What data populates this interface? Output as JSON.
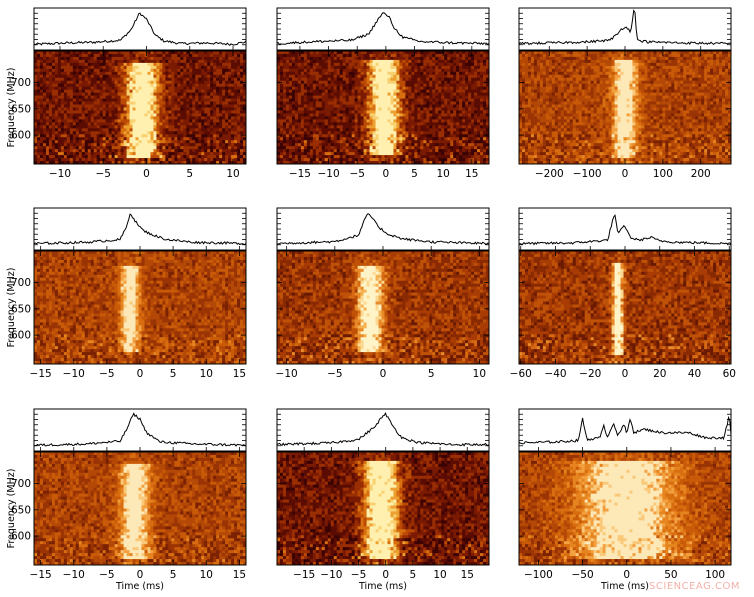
{
  "watermark": "SCIENCEAG.COM",
  "labels": {
    "ylabel": "Frequency (MHz)",
    "xlabel": "Time (ms)"
  },
  "chart_data": [
    {
      "type": "heatmap",
      "row": 0,
      "col": 0,
      "xlim": [
        -13,
        11.5
      ],
      "xticks": [
        -10,
        -5,
        0,
        5,
        10
      ],
      "ylim": [
        545,
        760
      ],
      "yticks": [
        600,
        650,
        700
      ],
      "colormap": "dark",
      "profile": [
        {
          "x": -13,
          "y": 0.08
        },
        {
          "x": -9,
          "y": 0.12
        },
        {
          "x": -6,
          "y": 0.14
        },
        {
          "x": -3,
          "y": 0.2
        },
        {
          "x": -1.8,
          "y": 0.5
        },
        {
          "x": -0.8,
          "y": 1.0
        },
        {
          "x": 0,
          "y": 0.82
        },
        {
          "x": 1,
          "y": 0.35
        },
        {
          "x": 2,
          "y": 0.18
        },
        {
          "x": 4,
          "y": 0.1
        },
        {
          "x": 7,
          "y": 0.12
        },
        {
          "x": 10,
          "y": 0.08
        },
        {
          "x": 11.5,
          "y": 0.15
        }
      ],
      "burst_center": -0.5,
      "burst_width": 1.8,
      "burst_fmin": 555,
      "burst_fmax": 740
    },
    {
      "type": "heatmap",
      "row": 0,
      "col": 1,
      "xlim": [
        -19,
        18
      ],
      "xticks": [
        -15,
        -10,
        -5,
        0,
        5,
        10,
        15
      ],
      "ylim": [
        545,
        760
      ],
      "yticks": [
        600,
        650,
        700
      ],
      "colormap": "dark",
      "profile": [
        {
          "x": -19,
          "y": 0.1
        },
        {
          "x": -12,
          "y": 0.16
        },
        {
          "x": -6,
          "y": 0.2
        },
        {
          "x": -3,
          "y": 0.38
        },
        {
          "x": -1.5,
          "y": 0.78
        },
        {
          "x": -0.5,
          "y": 1.0
        },
        {
          "x": 0.5,
          "y": 0.9
        },
        {
          "x": 1.5,
          "y": 0.55
        },
        {
          "x": 3,
          "y": 0.28
        },
        {
          "x": 6,
          "y": 0.16
        },
        {
          "x": 12,
          "y": 0.12
        },
        {
          "x": 18,
          "y": 0.1
        }
      ],
      "burst_center": -0.3,
      "burst_width": 2.5,
      "burst_fmin": 560,
      "burst_fmax": 745
    },
    {
      "type": "heatmap",
      "row": 0,
      "col": 2,
      "xlim": [
        -280,
        280
      ],
      "xticks": [
        -200,
        -100,
        0,
        100,
        200
      ],
      "ylim": [
        545,
        760
      ],
      "yticks": [
        600,
        650,
        700
      ],
      "colormap": "light",
      "profile": [
        {
          "x": -280,
          "y": 0.1
        },
        {
          "x": -200,
          "y": 0.12
        },
        {
          "x": -100,
          "y": 0.15
        },
        {
          "x": -40,
          "y": 0.2
        },
        {
          "x": -20,
          "y": 0.38
        },
        {
          "x": -10,
          "y": 0.52
        },
        {
          "x": 0,
          "y": 0.6
        },
        {
          "x": 8,
          "y": 0.55
        },
        {
          "x": 15,
          "y": 0.4
        },
        {
          "x": 25,
          "y": 1.25
        },
        {
          "x": 32,
          "y": 0.2
        },
        {
          "x": 60,
          "y": 0.15
        },
        {
          "x": 150,
          "y": 0.12
        },
        {
          "x": 280,
          "y": 0.1
        }
      ],
      "burst_center": 0,
      "burst_width": 30,
      "burst_fmin": 555,
      "burst_fmax": 745
    },
    {
      "type": "heatmap",
      "row": 1,
      "col": 0,
      "xlim": [
        -16,
        16
      ],
      "xticks": [
        -15,
        -10,
        -5,
        0,
        5,
        10,
        15
      ],
      "ylim": [
        545,
        760
      ],
      "yticks": [
        600,
        650,
        700
      ],
      "colormap": "light",
      "profile": [
        {
          "x": -16,
          "y": 0.1
        },
        {
          "x": -8,
          "y": 0.14
        },
        {
          "x": -3,
          "y": 0.22
        },
        {
          "x": -2,
          "y": 0.6
        },
        {
          "x": -1.5,
          "y": 1.0
        },
        {
          "x": -0.5,
          "y": 0.7
        },
        {
          "x": 0.5,
          "y": 0.48
        },
        {
          "x": 2,
          "y": 0.35
        },
        {
          "x": 4,
          "y": 0.22
        },
        {
          "x": 8,
          "y": 0.14
        },
        {
          "x": 16,
          "y": 0.1
        }
      ],
      "burst_center": -1.5,
      "burst_width": 1.3,
      "burst_fmin": 570,
      "burst_fmax": 730
    },
    {
      "type": "heatmap",
      "row": 1,
      "col": 1,
      "xlim": [
        -11,
        11
      ],
      "xticks": [
        -10,
        -5,
        0,
        5,
        10
      ],
      "ylim": [
        545,
        760
      ],
      "yticks": [
        600,
        650,
        700
      ],
      "colormap": "medium",
      "profile": [
        {
          "x": -11,
          "y": 0.1
        },
        {
          "x": -5,
          "y": 0.16
        },
        {
          "x": -2.5,
          "y": 0.35
        },
        {
          "x": -2,
          "y": 0.75
        },
        {
          "x": -1.5,
          "y": 1.0
        },
        {
          "x": -0.5,
          "y": 0.6
        },
        {
          "x": 0.5,
          "y": 0.38
        },
        {
          "x": 2,
          "y": 0.24
        },
        {
          "x": 5,
          "y": 0.15
        },
        {
          "x": 11,
          "y": 0.1
        }
      ],
      "burst_center": -1.3,
      "burst_width": 1.2,
      "burst_fmin": 570,
      "burst_fmax": 730
    },
    {
      "type": "heatmap",
      "row": 1,
      "col": 2,
      "xlim": [
        -61,
        61
      ],
      "xticks": [
        -60,
        -40,
        -20,
        0,
        20,
        40,
        60
      ],
      "ylim": [
        545,
        760
      ],
      "yticks": [
        600,
        650,
        700
      ],
      "colormap": "medium",
      "profile": [
        {
          "x": -61,
          "y": 0.1
        },
        {
          "x": -30,
          "y": 0.12
        },
        {
          "x": -10,
          "y": 0.2
        },
        {
          "x": -6,
          "y": 1.0
        },
        {
          "x": -4,
          "y": 0.35
        },
        {
          "x": -2,
          "y": 0.55
        },
        {
          "x": 0,
          "y": 0.62
        },
        {
          "x": 3,
          "y": 0.28
        },
        {
          "x": 8,
          "y": 0.2
        },
        {
          "x": 15,
          "y": 0.28
        },
        {
          "x": 20,
          "y": 0.18
        },
        {
          "x": 30,
          "y": 0.14
        },
        {
          "x": 61,
          "y": 0.1
        }
      ],
      "burst_center": -4,
      "burst_width": 3,
      "burst_fmin": 560,
      "burst_fmax": 740
    },
    {
      "type": "heatmap",
      "row": 2,
      "col": 0,
      "xlim": [
        -16,
        16
      ],
      "xticks": [
        -15,
        -10,
        -5,
        0,
        5,
        10,
        15
      ],
      "ylim": [
        545,
        760
      ],
      "yticks": [
        600,
        650,
        700
      ],
      "colormap": "light",
      "profile": [
        {
          "x": -16,
          "y": 0.08
        },
        {
          "x": -8,
          "y": 0.12
        },
        {
          "x": -3,
          "y": 0.2
        },
        {
          "x": -2,
          "y": 0.55
        },
        {
          "x": -1,
          "y": 1.0
        },
        {
          "x": 0,
          "y": 0.85
        },
        {
          "x": 1,
          "y": 0.45
        },
        {
          "x": 3,
          "y": 0.18
        },
        {
          "x": 8,
          "y": 0.12
        },
        {
          "x": 16,
          "y": 0.08
        }
      ],
      "burst_center": -0.8,
      "burst_width": 2,
      "burst_fmin": 555,
      "burst_fmax": 740
    },
    {
      "type": "heatmap",
      "row": 2,
      "col": 1,
      "xlim": [
        -20,
        19
      ],
      "xticks": [
        -15,
        -10,
        -5,
        0,
        5,
        10,
        15
      ],
      "ylim": [
        545,
        760
      ],
      "yticks": [
        600,
        650,
        700
      ],
      "colormap": "dark",
      "profile": [
        {
          "x": -20,
          "y": 0.1
        },
        {
          "x": -10,
          "y": 0.15
        },
        {
          "x": -5,
          "y": 0.25
        },
        {
          "x": -3,
          "y": 0.5
        },
        {
          "x": -2,
          "y": 0.62
        },
        {
          "x": -1,
          "y": 0.85
        },
        {
          "x": 0,
          "y": 1.0
        },
        {
          "x": 1.5,
          "y": 0.6
        },
        {
          "x": 3,
          "y": 0.3
        },
        {
          "x": 6,
          "y": 0.16
        },
        {
          "x": 12,
          "y": 0.1
        },
        {
          "x": 19,
          "y": 0.1
        }
      ],
      "burst_center": -0.8,
      "burst_width": 3,
      "burst_fmin": 555,
      "burst_fmax": 745
    },
    {
      "type": "heatmap",
      "row": 2,
      "col": 2,
      "xlim": [
        -122,
        118
      ],
      "xticks": [
        -100,
        -50,
        0,
        50,
        100
      ],
      "ylim": [
        545,
        760
      ],
      "yticks": [
        600,
        650,
        700
      ],
      "colormap": "light",
      "profile": [
        {
          "x": -122,
          "y": 0.15
        },
        {
          "x": -80,
          "y": 0.18
        },
        {
          "x": -55,
          "y": 0.22
        },
        {
          "x": -50,
          "y": 0.85
        },
        {
          "x": -45,
          "y": 0.25
        },
        {
          "x": -30,
          "y": 0.3
        },
        {
          "x": -26,
          "y": 0.7
        },
        {
          "x": -22,
          "y": 0.3
        },
        {
          "x": -15,
          "y": 0.75
        },
        {
          "x": -10,
          "y": 0.35
        },
        {
          "x": -3,
          "y": 0.7
        },
        {
          "x": 0,
          "y": 0.4
        },
        {
          "x": 4,
          "y": 0.9
        },
        {
          "x": 8,
          "y": 0.45
        },
        {
          "x": 20,
          "y": 0.55
        },
        {
          "x": 40,
          "y": 0.45
        },
        {
          "x": 70,
          "y": 0.45
        },
        {
          "x": 90,
          "y": 0.3
        },
        {
          "x": 110,
          "y": 0.3
        },
        {
          "x": 116,
          "y": 0.95
        },
        {
          "x": 118,
          "y": 0.4
        }
      ],
      "burst_center": 0,
      "burst_width": 50,
      "burst_fmin": 555,
      "burst_fmax": 745
    }
  ]
}
